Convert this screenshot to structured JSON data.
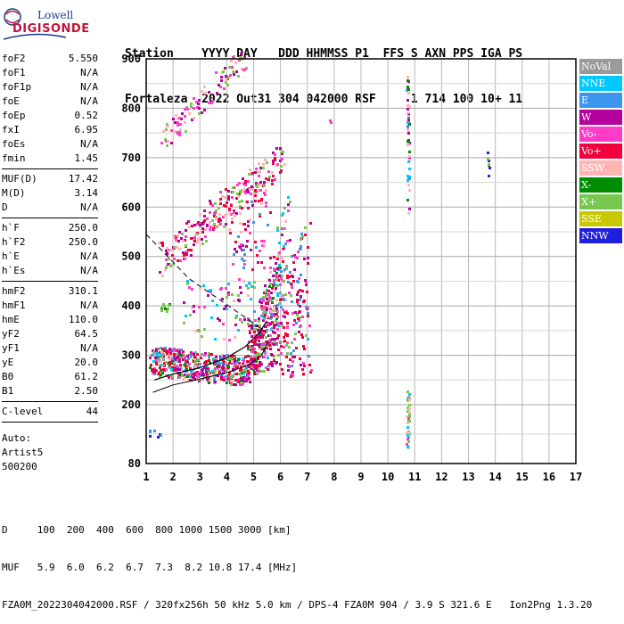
{
  "logo": {
    "line1": "Lowell",
    "line2": "DIGISONDE"
  },
  "header": {
    "line1": "Station    YYYY DAY   DDD HHMMSS P1  FFS S AXN PPS IGA PS",
    "line2": "Fortaleza  2022 Out31 304 042000 RSF     1 714 100 10+ 11"
  },
  "params_group1": [
    {
      "label": "foF2",
      "value": "5.550"
    },
    {
      "label": "foF1",
      "value": "N/A"
    },
    {
      "label": "foF1p",
      "value": "N/A"
    },
    {
      "label": "foE",
      "value": "N/A"
    },
    {
      "label": "foEp",
      "value": "0.52"
    },
    {
      "label": "fxI",
      "value": "6.95"
    },
    {
      "label": "foEs",
      "value": "N/A"
    },
    {
      "label": "fmin",
      "value": "1.45"
    }
  ],
  "params_group2": [
    {
      "label": "MUF(D)",
      "value": "17.42"
    },
    {
      "label": "M(D)",
      "value": "3.14"
    },
    {
      "label": "D",
      "value": "N/A"
    }
  ],
  "params_group3": [
    {
      "label": "h`F",
      "value": "250.0"
    },
    {
      "label": "h`F2",
      "value": "250.0"
    },
    {
      "label": "h`E",
      "value": "N/A"
    },
    {
      "label": "h`Es",
      "value": "N/A"
    }
  ],
  "params_group4": [
    {
      "label": "hmF2",
      "value": "310.1"
    },
    {
      "label": "hmF1",
      "value": "N/A"
    },
    {
      "label": "hmE",
      "value": "110.0"
    },
    {
      "label": "yF2",
      "value": "64.5"
    },
    {
      "label": "yF1",
      "value": "N/A"
    },
    {
      "label": "yE",
      "value": "20.0"
    },
    {
      "label": "B0",
      "value": "61.2"
    },
    {
      "label": "B1",
      "value": "2.50"
    }
  ],
  "params_group5": [
    {
      "label": "C-level",
      "value": "44"
    }
  ],
  "auto_lines": [
    "Auto:",
    "Artist5",
    "500200"
  ],
  "legend": [
    {
      "label": "NoVal",
      "color": "#9a9a9a"
    },
    {
      "label": "NNE",
      "color": "#00c8ff"
    },
    {
      "label": "E",
      "color": "#3c96f0"
    },
    {
      "label": "W",
      "color": "#b4009c"
    },
    {
      "label": "Vo-",
      "color": "#ff3cc8"
    },
    {
      "label": "Vo+",
      "color": "#f0003c"
    },
    {
      "label": "SSW",
      "color": "#ffb4b4"
    },
    {
      "label": "X-",
      "color": "#008c00"
    },
    {
      "label": "X+",
      "color": "#78c850"
    },
    {
      "label": "SSE",
      "color": "#c8c800"
    },
    {
      "label": "NNW",
      "color": "#1e1edc"
    }
  ],
  "axes": {
    "y_ticks": [
      "900",
      "800",
      "700",
      "600",
      "500",
      "400",
      "300",
      "200",
      "80"
    ],
    "x_ticks": [
      "1",
      "2",
      "3",
      "4",
      "5",
      "6",
      "7",
      "8",
      "9",
      "10",
      "11",
      "12",
      "13",
      "14",
      "15",
      "16",
      "17"
    ],
    "x_range": [
      1,
      17
    ],
    "y_range": [
      80,
      900
    ],
    "x_unit": "MHz",
    "y_unit": "km"
  },
  "bottom": {
    "line1": "D     100  200  400  600  800 1000 1500 3000 [km]",
    "line2": "MUF   5.9  6.0  6.2  6.7  7.3  8.2 10.8 17.4 [MHz]",
    "line3": "FZA0M_2022304042000.RSF / 320fx256h 50 kHz 5.0 km / DPS-4 FZA0M 904 / 3.9 S 321.6 E   Ion2Png 1.3.20"
  }
}
